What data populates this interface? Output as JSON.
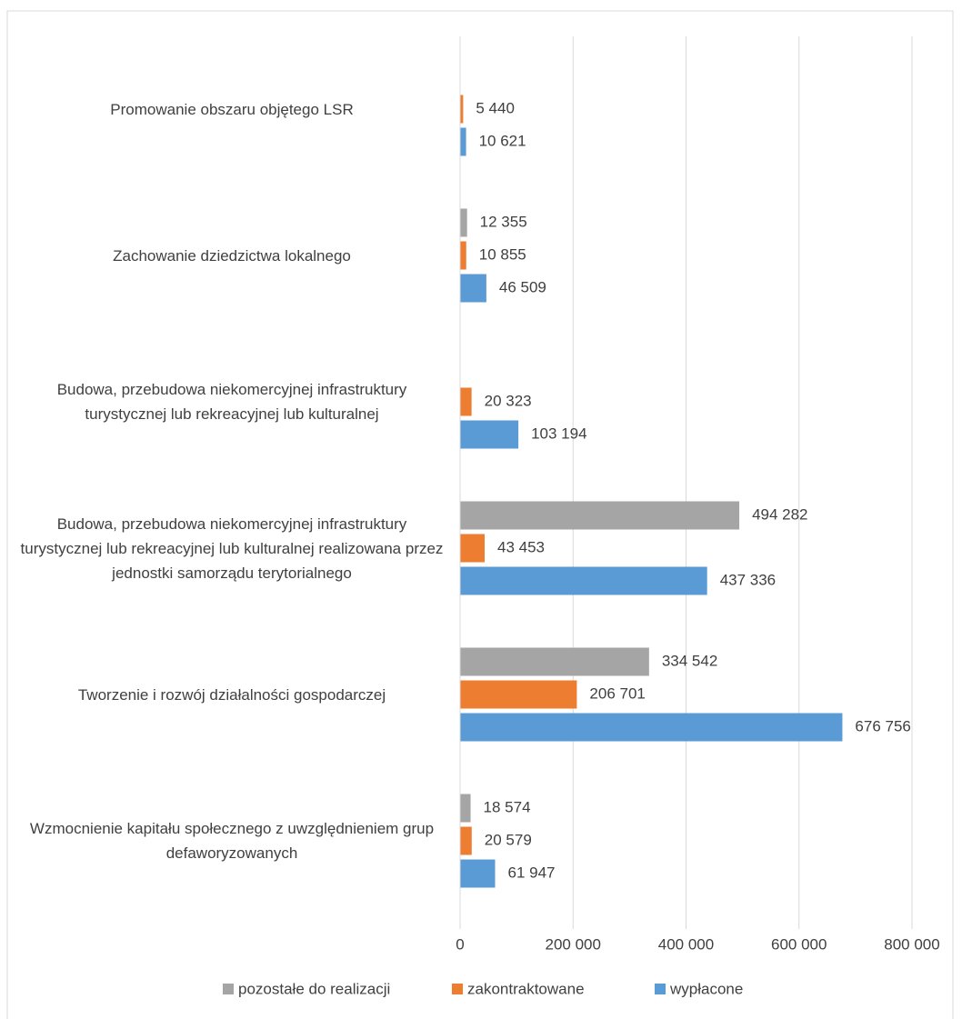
{
  "chart_data": {
    "type": "barh",
    "categories": [
      "Promowanie obszaru objętego LSR",
      "Zachowanie dziedzictwa lokalnego",
      "Budowa, przebudowa niekomercyjnej infrastruktury turystycznej lub rekreacyjnej lub kulturalnej",
      "Budowa, przebudowa niekomercyjnej infrastruktury turystycznej lub rekreacyjnej lub kulturalnej realizowana przez jednostki samorządu terytorialnego",
      "Tworzenie i rozwój działalności gospodarczej",
      "Wzmocnienie kapitału społecznego z uwzględnieniem grup defaworyzowanych"
    ],
    "series": [
      {
        "name": "pozostałe do realizacji",
        "color": "#a5a5a5",
        "values": [
          null,
          12355,
          null,
          494282,
          334542,
          18574
        ],
        "value_labels": [
          null,
          "12 355",
          null,
          "494 282",
          "334 542",
          "18 574"
        ]
      },
      {
        "name": "zakontraktowane",
        "color": "#ed7d31",
        "values": [
          5440,
          10855,
          20323,
          43453,
          206701,
          20579
        ],
        "value_labels": [
          "5 440",
          "10 855",
          "20 323",
          "43 453",
          "206 701",
          "20 579"
        ]
      },
      {
        "name": "wypłacone",
        "color": "#5b9bd5",
        "values": [
          10621,
          46509,
          103194,
          437336,
          676756,
          61947
        ],
        "value_labels": [
          "10 621",
          "46 509",
          "103 194",
          "437 336",
          "676 756",
          "61 947"
        ]
      }
    ],
    "xlim": [
      0,
      800000
    ],
    "xticks": [
      0,
      {
        "value": 200000,
        "label": "200 000"
      },
      {
        "value": 400000,
        "label": "400 000"
      },
      {
        "value": 600000,
        "label": "600 000"
      },
      {
        "value": 800000,
        "label": "800 000"
      }
    ],
    "grid": true,
    "legend": "bottom"
  }
}
